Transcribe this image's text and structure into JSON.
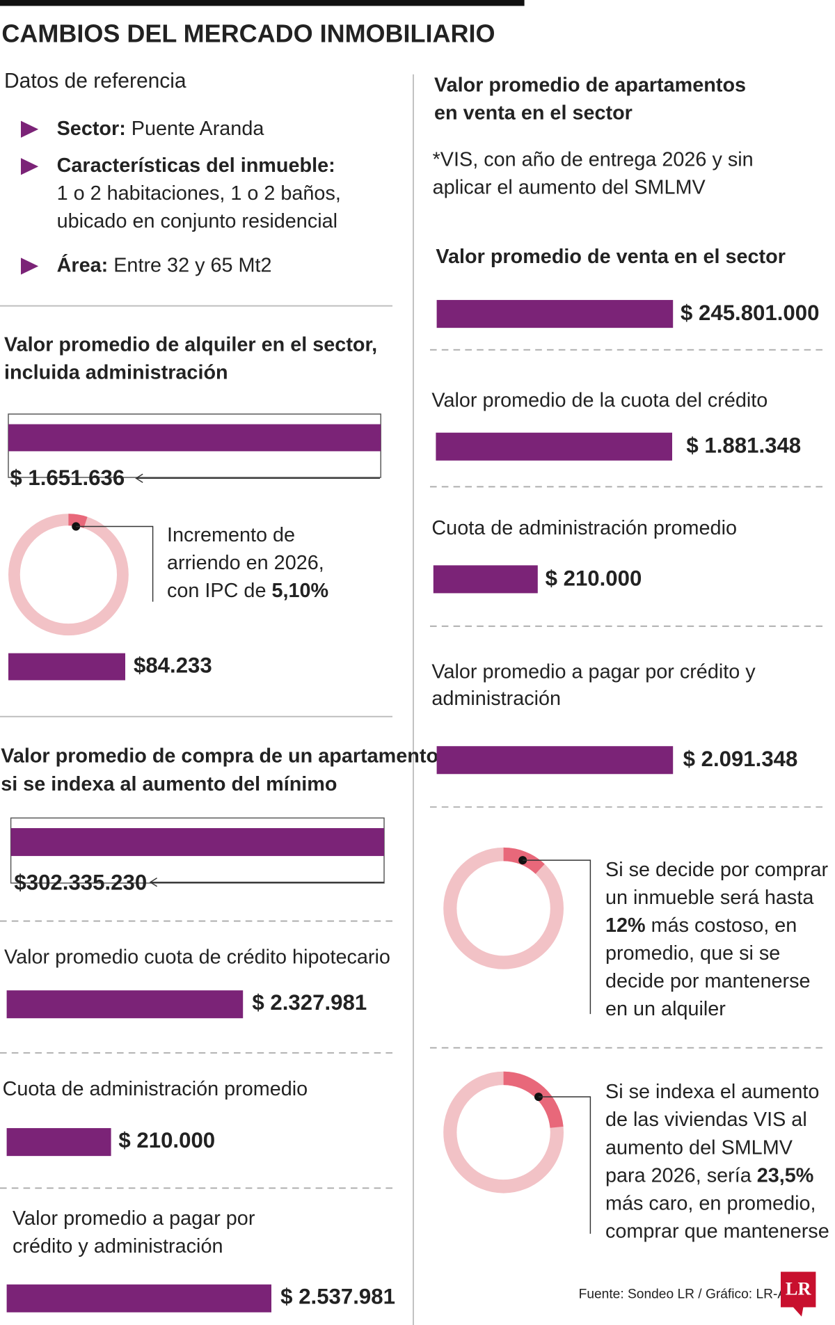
{
  "title": "CAMBIOS DEL MERCADO INMOBILIARIO",
  "reference": {
    "heading": "Datos de referencia",
    "items": [
      {
        "label": "Sector:",
        "lines": [
          " Puente Aranda"
        ]
      },
      {
        "label": "Características del inmueble:",
        "lines": [
          "1 o 2 habitaciones, 1 o 2 baños,",
          "ubicado en conjunto residencial"
        ]
      },
      {
        "label": "Área:",
        "lines": [
          " Entre 32 y 65 Mt2"
        ]
      }
    ]
  },
  "rent": {
    "heading": [
      "Valor promedio de alquiler en el sector,",
      "incluida administración"
    ],
    "value": "$ 1.651.636",
    "increase": [
      {
        "text": "Incremento de"
      },
      {
        "text": "arriendo en 2026,"
      },
      {
        "text": "con IPC de ",
        "bold": "5,10%"
      }
    ],
    "increase_value": "$84.233"
  },
  "purchase": {
    "heading": [
      "Valor promedio de compra de un apartamento",
      "si se indexa al aumento del mínimo"
    ],
    "value": "$302.335.230",
    "items": [
      {
        "label": [
          "Valor promedio cuota de crédito hipotecario"
        ],
        "value": "$ 2.327.981"
      },
      {
        "label": [
          "Cuota de administración promedio"
        ],
        "value": "$ 210.000"
      },
      {
        "label": [
          "Valor promedio a pagar por",
          "crédito y administración"
        ],
        "value": "$ 2.537.981"
      }
    ]
  },
  "sale": {
    "heading": [
      "Valor promedio de apartamentos",
      "en venta en el sector"
    ],
    "note": [
      "*VIS, con año de entrega 2026 y sin",
      "aplicar el aumento del SMLMV"
    ],
    "items": [
      {
        "label": [
          "Valor promedio de venta en el sector"
        ],
        "value": "$ 245.801.000"
      },
      {
        "label": [
          "Valor promedio de la cuota del crédito"
        ],
        "value": "$ 1.881.348"
      },
      {
        "label": [
          "Cuota de administración promedio"
        ],
        "value": "$ 210.000"
      },
      {
        "label": [
          "Valor promedio a pagar por crédito y",
          "administración"
        ],
        "value": "$ 2.091.348"
      }
    ],
    "comparisons": [
      [
        {
          "text": " Si se decide por comprar"
        },
        {
          "text": "un inmueble será hasta"
        },
        {
          "bold": "12%",
          "text": " más costoso, en"
        },
        {
          "text": "promedio, que si se"
        },
        {
          "text": "decide por mantenerse"
        },
        {
          "text": "en un alquiler"
        }
      ],
      [
        {
          "text": " Si se indexa el aumento"
        },
        {
          "text": "de las viviendas VIS al"
        },
        {
          "text": "aumento del SMLMV"
        },
        {
          "text": "para 2026, sería ",
          "bold": "23,5%"
        },
        {
          "text": "más caro, en promedio,"
        },
        {
          "text": "comprar que mantenerse"
        }
      ]
    ]
  },
  "source": "Fuente: Sondeo LR / Gráfico: LR-AA",
  "logo": "LR"
}
